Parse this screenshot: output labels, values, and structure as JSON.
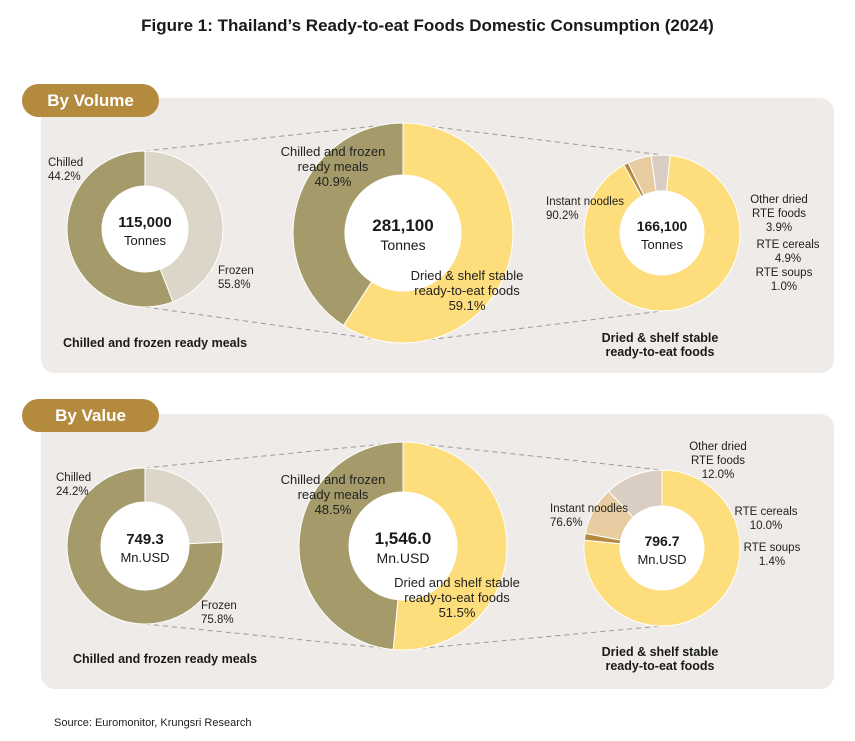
{
  "title": "Figure 1: Thailand’s Ready-to-eat Foods Domestic Consumption (2024)",
  "source": "Source: Euromonitor, Krungsri Research",
  "sections": {
    "volume": {
      "label": "By Volume",
      "left_caption": "Chilled and frozen ready meals",
      "right_caption": [
        "Dried & shelf stable",
        "ready-to-eat foods"
      ]
    },
    "value": {
      "label": "By Value",
      "left_caption": "Chilled and frozen ready meals",
      "right_caption": [
        "Dried & shelf stable",
        "ready-to-eat foods"
      ]
    }
  },
  "colors": {
    "chilled": "#dcd6c8",
    "frozen": "#a59b6a",
    "dried": "#fedd7c",
    "other_dried": "#d9cdc4",
    "cereals": "#e7cca1",
    "soups": "#b38a3e",
    "pill": "#b38a3e",
    "panel": "#efebe8"
  },
  "chart_data": [
    {
      "id": "vol_chilled_frozen",
      "type": "pie",
      "donut": true,
      "center": [
        "115,000",
        "Tonnes"
      ],
      "slices": [
        {
          "name": "Chilled",
          "pct": 44.2,
          "label": [
            "Chilled",
            "44.2%"
          ]
        },
        {
          "name": "Frozen",
          "pct": 55.8,
          "label": [
            "Frozen",
            "55.8%"
          ]
        }
      ]
    },
    {
      "id": "vol_total",
      "type": "pie",
      "donut": true,
      "center": [
        "281,100",
        "Tonnes"
      ],
      "slices": [
        {
          "name": "Dried & shelf stable ready-to-eat foods",
          "pct": 59.1,
          "label": [
            "Dried & shelf stable",
            "ready-to-eat foods",
            "59.1%"
          ]
        },
        {
          "name": "Chilled and frozen ready meals",
          "pct": 40.9,
          "label": [
            "Chilled and frozen",
            "ready meals",
            "40.9%"
          ]
        }
      ]
    },
    {
      "id": "vol_dried",
      "type": "pie",
      "donut": true,
      "center": [
        "166,100",
        "Tonnes"
      ],
      "slices": [
        {
          "name": "Instant noodles",
          "pct": 90.2,
          "label": [
            "Instant noodles",
            "90.2%"
          ]
        },
        {
          "name": "RTE soups",
          "pct": 1.0,
          "label": [
            "RTE soups",
            "1.0%"
          ]
        },
        {
          "name": "RTE cereals",
          "pct": 4.9,
          "label": [
            "RTE cereals",
            "4.9%"
          ]
        },
        {
          "name": "Other dried RTE foods",
          "pct": 3.9,
          "label": [
            "Other dried",
            "RTE foods",
            "3.9%"
          ]
        }
      ]
    },
    {
      "id": "val_chilled_frozen",
      "type": "pie",
      "donut": true,
      "center": [
        "749.3",
        "Mn.USD"
      ],
      "slices": [
        {
          "name": "Chilled",
          "pct": 24.2,
          "label": [
            "Chilled",
            "24.2%"
          ]
        },
        {
          "name": "Frozen",
          "pct": 75.8,
          "label": [
            "Frozen",
            "75.8%"
          ]
        }
      ]
    },
    {
      "id": "val_total",
      "type": "pie",
      "donut": true,
      "center": [
        "1,546.0",
        "Mn.USD"
      ],
      "slices": [
        {
          "name": "Dried and shelf stable ready-to-eat foods",
          "pct": 51.5,
          "label": [
            "Dried and shelf stable",
            "ready-to-eat foods",
            "51.5%"
          ]
        },
        {
          "name": "Chilled and frozen ready meals",
          "pct": 48.5,
          "label": [
            "Chilled and frozen",
            "ready meals",
            "48.5%"
          ]
        }
      ]
    },
    {
      "id": "val_dried",
      "type": "pie",
      "donut": true,
      "center": [
        "796.7",
        "Mn.USD"
      ],
      "slices": [
        {
          "name": "Instant noodles",
          "pct": 76.6,
          "label": [
            "Instant noodles",
            "76.6%"
          ]
        },
        {
          "name": "RTE soups",
          "pct": 1.4,
          "label": [
            "RTE soups",
            "1.4%"
          ]
        },
        {
          "name": "RTE cereals",
          "pct": 10.0,
          "label": [
            "RTE cereals",
            "10.0%"
          ]
        },
        {
          "name": "Other dried RTE foods",
          "pct": 12.0,
          "label": [
            "Other dried",
            "RTE foods",
            "12.0%"
          ]
        }
      ]
    }
  ]
}
